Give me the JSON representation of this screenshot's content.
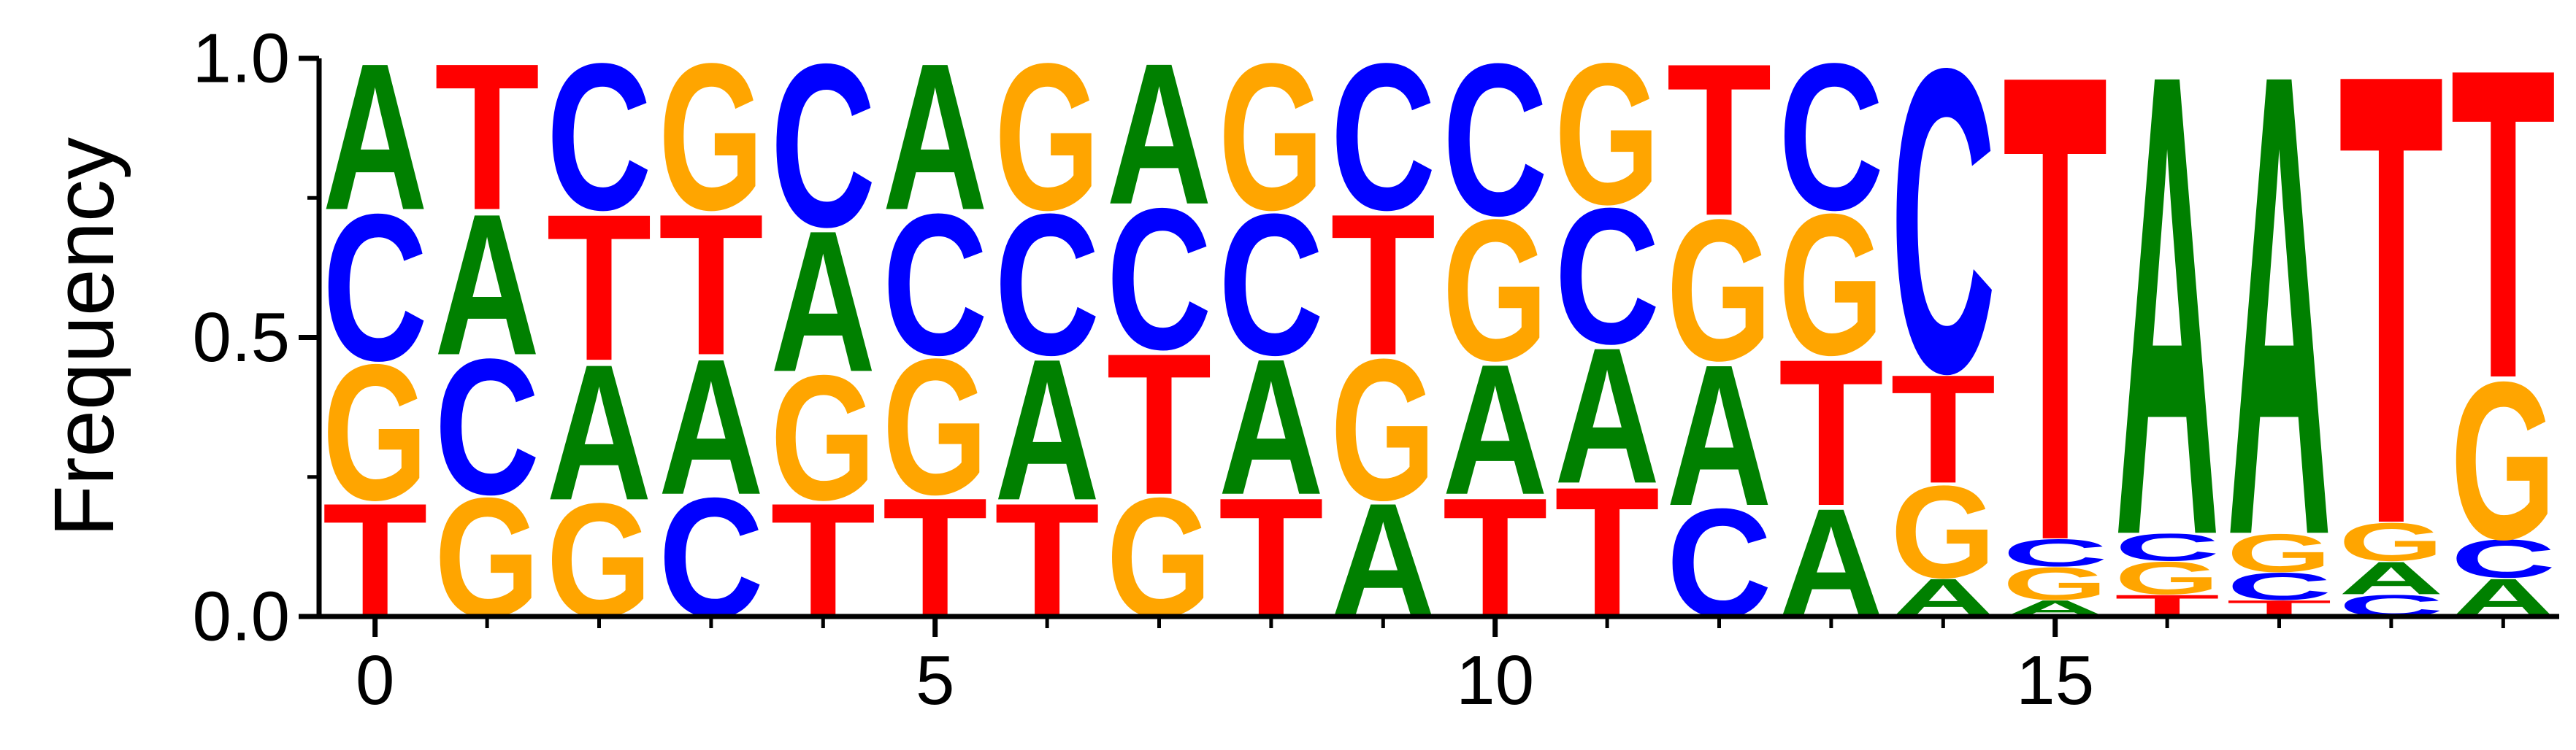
{
  "chart_data": {
    "type": "sequence-logo",
    "title": "",
    "xlabel": "",
    "ylabel": "Frequency",
    "ylim": [
      0,
      1
    ],
    "xlim": [
      -0.5,
      19.5
    ],
    "y_ticks": [
      "0.0",
      "0.5",
      "1.0"
    ],
    "y_tick_values": [
      0,
      0.5,
      1
    ],
    "x_ticks": [
      "0",
      "5",
      "10",
      "15"
    ],
    "x_tick_values": [
      0,
      5,
      10,
      15
    ],
    "colors": {
      "A": "#008000",
      "C": "#0000ff",
      "G": "#ffa500",
      "T": "#ff0000"
    },
    "positions": [
      [
        {
          "base": "T",
          "value": 0.21
        },
        {
          "base": "G",
          "value": 0.25
        },
        {
          "base": "C",
          "value": 0.27
        },
        {
          "base": "A",
          "value": 0.27
        }
      ],
      [
        {
          "base": "G",
          "value": 0.22
        },
        {
          "base": "C",
          "value": 0.25
        },
        {
          "base": "A",
          "value": 0.26
        },
        {
          "base": "T",
          "value": 0.27
        }
      ],
      [
        {
          "base": "G",
          "value": 0.21
        },
        {
          "base": "A",
          "value": 0.25
        },
        {
          "base": "T",
          "value": 0.27
        },
        {
          "base": "C",
          "value": 0.27
        }
      ],
      [
        {
          "base": "C",
          "value": 0.22
        },
        {
          "base": "A",
          "value": 0.25
        },
        {
          "base": "T",
          "value": 0.26
        },
        {
          "base": "G",
          "value": 0.27
        }
      ],
      [
        {
          "base": "T",
          "value": 0.21
        },
        {
          "base": "G",
          "value": 0.23
        },
        {
          "base": "A",
          "value": 0.26
        },
        {
          "base": "C",
          "value": 0.3
        }
      ],
      [
        {
          "base": "T",
          "value": 0.22
        },
        {
          "base": "G",
          "value": 0.25
        },
        {
          "base": "C",
          "value": 0.26
        },
        {
          "base": "A",
          "value": 0.27
        }
      ],
      [
        {
          "base": "T",
          "value": 0.21
        },
        {
          "base": "A",
          "value": 0.26
        },
        {
          "base": "C",
          "value": 0.26
        },
        {
          "base": "G",
          "value": 0.27
        }
      ],
      [
        {
          "base": "G",
          "value": 0.22
        },
        {
          "base": "T",
          "value": 0.26
        },
        {
          "base": "C",
          "value": 0.26
        },
        {
          "base": "A",
          "value": 0.26
        }
      ],
      [
        {
          "base": "T",
          "value": 0.22
        },
        {
          "base": "A",
          "value": 0.25
        },
        {
          "base": "C",
          "value": 0.26
        },
        {
          "base": "G",
          "value": 0.27
        }
      ],
      [
        {
          "base": "A",
          "value": 0.21
        },
        {
          "base": "G",
          "value": 0.26
        },
        {
          "base": "T",
          "value": 0.26
        },
        {
          "base": "C",
          "value": 0.27
        }
      ],
      [
        {
          "base": "T",
          "value": 0.22
        },
        {
          "base": "A",
          "value": 0.24
        },
        {
          "base": "G",
          "value": 0.26
        },
        {
          "base": "C",
          "value": 0.28
        }
      ],
      [
        {
          "base": "T",
          "value": 0.24
        },
        {
          "base": "A",
          "value": 0.25
        },
        {
          "base": "C",
          "value": 0.25
        },
        {
          "base": "G",
          "value": 0.26
        }
      ],
      [
        {
          "base": "C",
          "value": 0.2
        },
        {
          "base": "A",
          "value": 0.26
        },
        {
          "base": "G",
          "value": 0.26
        },
        {
          "base": "T",
          "value": 0.28
        }
      ],
      [
        {
          "base": "A",
          "value": 0.2
        },
        {
          "base": "T",
          "value": 0.27
        },
        {
          "base": "G",
          "value": 0.26
        },
        {
          "base": "C",
          "value": 0.27
        }
      ],
      [
        {
          "base": "A",
          "value": 0.07
        },
        {
          "base": "G",
          "value": 0.17
        },
        {
          "base": "T",
          "value": 0.2
        },
        {
          "base": "C",
          "value": 0.56
        }
      ],
      [
        {
          "base": "A",
          "value": 0.03
        },
        {
          "base": "G",
          "value": 0.06
        },
        {
          "base": "C",
          "value": 0.05
        },
        {
          "base": "T",
          "value": 0.86
        }
      ],
      [
        {
          "base": "T",
          "value": 0.04
        },
        {
          "base": "G",
          "value": 0.06
        },
        {
          "base": "C",
          "value": 0.05
        },
        {
          "base": "A",
          "value": 0.85
        }
      ],
      [
        {
          "base": "T",
          "value": 0.03
        },
        {
          "base": "C",
          "value": 0.05
        },
        {
          "base": "G",
          "value": 0.07
        },
        {
          "base": "A",
          "value": 0.85
        }
      ],
      [
        {
          "base": "C",
          "value": 0.04
        },
        {
          "base": "A",
          "value": 0.06
        },
        {
          "base": "G",
          "value": 0.07
        },
        {
          "base": "T",
          "value": 0.83
        }
      ],
      [
        {
          "base": "A",
          "value": 0.07
        },
        {
          "base": "C",
          "value": 0.07
        },
        {
          "base": "G",
          "value": 0.29
        },
        {
          "base": "T",
          "value": 0.57
        }
      ]
    ]
  }
}
